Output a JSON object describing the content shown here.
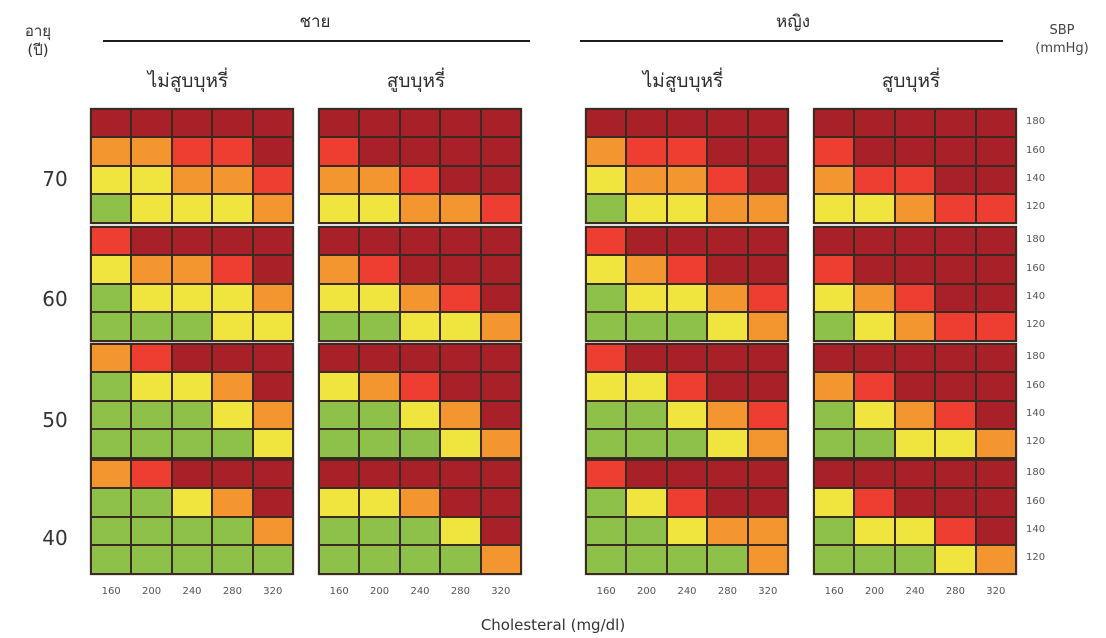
{
  "header": {
    "age_label": "อายุ\n(ปี)",
    "sbp_label": "SBP\n(mmHg)"
  },
  "colors": {
    "1": "#8dc14a",
    "2": "#f0e43f",
    "3": "#f3962f",
    "4": "#ee3e32",
    "5": "#a82129"
  },
  "chart_data": {
    "type": "heatmap",
    "xlabel": "Cholesteral (mg/dl)",
    "cholesterol": [
      160,
      200,
      240,
      280,
      320
    ],
    "sbp": [
      180,
      160,
      140,
      120
    ],
    "ages": [
      70,
      60,
      50,
      40
    ],
    "sexes": [
      {
        "label": "ชาย",
        "smoking": [
          "ไม่สูบบุหรี่",
          "สูบบุหรี่"
        ]
      },
      {
        "label": "หญิง",
        "smoking": [
          "ไม่สูบบุหรี่",
          "สูบบุหรี่"
        ]
      }
    ],
    "risk_levels": [
      1,
      2,
      3,
      4,
      5
    ],
    "grids": [
      [
        [
          [
            5,
            5,
            5,
            5,
            5
          ],
          [
            3,
            3,
            4,
            4,
            5
          ],
          [
            2,
            2,
            3,
            3,
            4
          ],
          [
            1,
            2,
            2,
            2,
            3
          ]
        ],
        [
          [
            4,
            5,
            5,
            5,
            5
          ],
          [
            2,
            3,
            3,
            4,
            5
          ],
          [
            1,
            2,
            2,
            2,
            3
          ],
          [
            1,
            1,
            1,
            2,
            2
          ]
        ],
        [
          [
            3,
            4,
            5,
            5,
            5
          ],
          [
            1,
            2,
            2,
            3,
            5
          ],
          [
            1,
            1,
            1,
            2,
            3
          ],
          [
            1,
            1,
            1,
            1,
            2
          ]
        ],
        [
          [
            3,
            4,
            5,
            5,
            5
          ],
          [
            1,
            1,
            2,
            3,
            5
          ],
          [
            1,
            1,
            1,
            1,
            3
          ],
          [
            1,
            1,
            1,
            1,
            1
          ]
        ]
      ],
      [
        [
          [
            5,
            5,
            5,
            5,
            5
          ],
          [
            4,
            5,
            5,
            5,
            5
          ],
          [
            3,
            3,
            4,
            5,
            5
          ],
          [
            2,
            2,
            3,
            3,
            4
          ]
        ],
        [
          [
            5,
            5,
            5,
            5,
            5
          ],
          [
            3,
            4,
            5,
            5,
            5
          ],
          [
            2,
            2,
            3,
            4,
            5
          ],
          [
            1,
            1,
            2,
            2,
            3
          ]
        ],
        [
          [
            5,
            5,
            5,
            5,
            5
          ],
          [
            2,
            3,
            4,
            5,
            5
          ],
          [
            1,
            1,
            2,
            3,
            5
          ],
          [
            1,
            1,
            1,
            2,
            3
          ]
        ],
        [
          [
            5,
            5,
            5,
            5,
            5
          ],
          [
            2,
            2,
            3,
            5,
            5
          ],
          [
            1,
            1,
            1,
            2,
            5
          ],
          [
            1,
            1,
            1,
            1,
            3
          ]
        ]
      ],
      [
        [
          [
            5,
            5,
            5,
            5,
            5
          ],
          [
            3,
            4,
            4,
            5,
            5
          ],
          [
            2,
            3,
            3,
            4,
            5
          ],
          [
            1,
            2,
            2,
            3,
            3
          ]
        ],
        [
          [
            4,
            5,
            5,
            5,
            5
          ],
          [
            2,
            3,
            4,
            5,
            5
          ],
          [
            1,
            2,
            2,
            3,
            4
          ],
          [
            1,
            1,
            1,
            2,
            3
          ]
        ],
        [
          [
            4,
            5,
            5,
            5,
            5
          ],
          [
            2,
            2,
            4,
            5,
            5
          ],
          [
            1,
            1,
            2,
            3,
            4
          ],
          [
            1,
            1,
            1,
            2,
            3
          ]
        ],
        [
          [
            4,
            5,
            5,
            5,
            5
          ],
          [
            1,
            2,
            4,
            5,
            5
          ],
          [
            1,
            1,
            2,
            3,
            3
          ],
          [
            1,
            1,
            1,
            1,
            3
          ]
        ]
      ],
      [
        [
          [
            5,
            5,
            5,
            5,
            5
          ],
          [
            4,
            5,
            5,
            5,
            5
          ],
          [
            3,
            4,
            4,
            5,
            5
          ],
          [
            2,
            2,
            3,
            4,
            4
          ]
        ],
        [
          [
            5,
            5,
            5,
            5,
            5
          ],
          [
            4,
            5,
            5,
            5,
            5
          ],
          [
            2,
            3,
            4,
            5,
            5
          ],
          [
            1,
            2,
            3,
            4,
            4
          ]
        ],
        [
          [
            5,
            5,
            5,
            5,
            5
          ],
          [
            3,
            4,
            5,
            5,
            5
          ],
          [
            1,
            2,
            3,
            4,
            5
          ],
          [
            1,
            1,
            2,
            2,
            3
          ]
        ],
        [
          [
            5,
            5,
            5,
            5,
            5
          ],
          [
            2,
            4,
            5,
            5,
            5
          ],
          [
            1,
            2,
            2,
            4,
            5
          ],
          [
            1,
            1,
            1,
            2,
            3
          ]
        ]
      ]
    ]
  }
}
